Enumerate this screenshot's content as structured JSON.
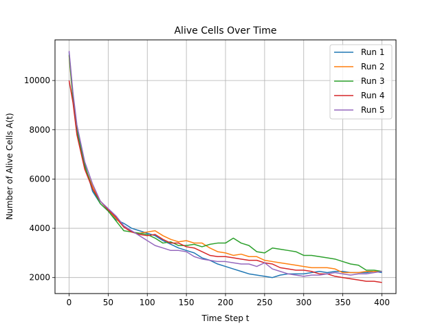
{
  "chart_data": {
    "type": "line",
    "title": "Alive Cells Over Time",
    "xlabel": "Time Step t",
    "ylabel": "Number of Alive Cells A(t)",
    "xlim": [
      -18,
      418
    ],
    "ylim": [
      1350,
      11650
    ],
    "xticks": [
      0,
      50,
      100,
      150,
      200,
      250,
      300,
      350,
      400
    ],
    "yticks": [
      2000,
      4000,
      6000,
      8000,
      10000
    ],
    "grid": true,
    "legend_position": "top-right",
    "series": [
      {
        "name": "Run 1",
        "color": "#1f77b4",
        "x": [
          0,
          5,
          10,
          20,
          30,
          40,
          50,
          60,
          70,
          80,
          90,
          100,
          110,
          120,
          130,
          140,
          150,
          160,
          170,
          180,
          190,
          200,
          210,
          220,
          230,
          240,
          250,
          260,
          270,
          280,
          290,
          300,
          310,
          320,
          330,
          340,
          350,
          360,
          370,
          380,
          390,
          400
        ],
        "y": [
          11150,
          9300,
          8000,
          6600,
          5500,
          5000,
          4700,
          4350,
          4200,
          4000,
          3900,
          3800,
          3700,
          3500,
          3350,
          3200,
          3100,
          3000,
          2800,
          2700,
          2550,
          2450,
          2350,
          2250,
          2150,
          2100,
          2050,
          2000,
          2100,
          2150,
          2150,
          2150,
          2200,
          2250,
          2200,
          2250,
          2250,
          2200,
          2200,
          2200,
          2250,
          2200
        ]
      },
      {
        "name": "Run 2",
        "color": "#ff7f0e",
        "x": [
          0,
          5,
          10,
          20,
          30,
          40,
          50,
          60,
          70,
          80,
          90,
          100,
          110,
          120,
          130,
          140,
          150,
          160,
          170,
          180,
          190,
          200,
          210,
          220,
          230,
          240,
          250,
          260,
          270,
          280,
          290,
          300,
          310,
          320,
          330,
          340,
          350,
          360,
          370,
          380,
          390,
          400
        ],
        "y": [
          11000,
          9200,
          7900,
          6500,
          5700,
          5100,
          4750,
          4400,
          4050,
          3850,
          3800,
          3850,
          3900,
          3700,
          3550,
          3450,
          3500,
          3400,
          3400,
          3200,
          3050,
          3000,
          2900,
          2950,
          2850,
          2850,
          2700,
          2650,
          2600,
          2550,
          2500,
          2450,
          2400,
          2400,
          2400,
          2350,
          2200,
          2200,
          2200,
          2250,
          2250,
          2250
        ]
      },
      {
        "name": "Run 3",
        "color": "#2ca02c",
        "x": [
          0,
          5,
          10,
          20,
          30,
          40,
          50,
          60,
          70,
          80,
          90,
          100,
          110,
          120,
          130,
          140,
          150,
          160,
          170,
          180,
          190,
          200,
          210,
          220,
          230,
          240,
          250,
          260,
          270,
          280,
          290,
          300,
          310,
          320,
          330,
          340,
          350,
          360,
          370,
          380,
          390,
          400
        ],
        "y": [
          11050,
          9250,
          7950,
          6550,
          5600,
          5000,
          4700,
          4300,
          3900,
          3850,
          3800,
          3750,
          3600,
          3400,
          3450,
          3300,
          3300,
          3350,
          3250,
          3350,
          3400,
          3400,
          3600,
          3400,
          3300,
          3050,
          3000,
          3200,
          3150,
          3100,
          3050,
          2900,
          2900,
          2850,
          2800,
          2750,
          2650,
          2550,
          2500,
          2300,
          2300,
          2250
        ]
      },
      {
        "name": "Run 4",
        "color": "#d62728",
        "x": [
          0,
          5,
          10,
          20,
          30,
          40,
          50,
          60,
          70,
          80,
          90,
          100,
          110,
          120,
          130,
          140,
          150,
          160,
          170,
          180,
          190,
          200,
          210,
          220,
          230,
          240,
          250,
          260,
          270,
          280,
          290,
          300,
          310,
          320,
          330,
          340,
          350,
          360,
          370,
          380,
          390,
          400
        ],
        "y": [
          10000,
          9100,
          7800,
          6400,
          5600,
          5100,
          4750,
          4450,
          4050,
          3850,
          3750,
          3700,
          3750,
          3550,
          3400,
          3400,
          3250,
          3200,
          3050,
          2900,
          2850,
          2850,
          2800,
          2750,
          2700,
          2700,
          2600,
          2550,
          2400,
          2350,
          2300,
          2300,
          2250,
          2150,
          2150,
          2050,
          2000,
          1950,
          1900,
          1850,
          1850,
          1800
        ]
      },
      {
        "name": "Run 5",
        "color": "#9467bd",
        "x": [
          0,
          5,
          10,
          20,
          30,
          40,
          50,
          60,
          70,
          80,
          90,
          100,
          110,
          120,
          130,
          140,
          150,
          160,
          170,
          180,
          190,
          200,
          210,
          220,
          230,
          240,
          250,
          260,
          270,
          280,
          290,
          300,
          310,
          320,
          330,
          340,
          350,
          360,
          370,
          380,
          390,
          400
        ],
        "y": [
          11200,
          9500,
          8200,
          6700,
          5800,
          5100,
          4800,
          4500,
          4100,
          3900,
          3700,
          3500,
          3300,
          3200,
          3100,
          3100,
          3050,
          2850,
          2750,
          2700,
          2650,
          2650,
          2600,
          2550,
          2550,
          2450,
          2600,
          2350,
          2250,
          2150,
          2100,
          2050,
          2100,
          2100,
          2150,
          2200,
          2150,
          2100,
          2150,
          2150,
          2200,
          2250
        ]
      }
    ]
  }
}
